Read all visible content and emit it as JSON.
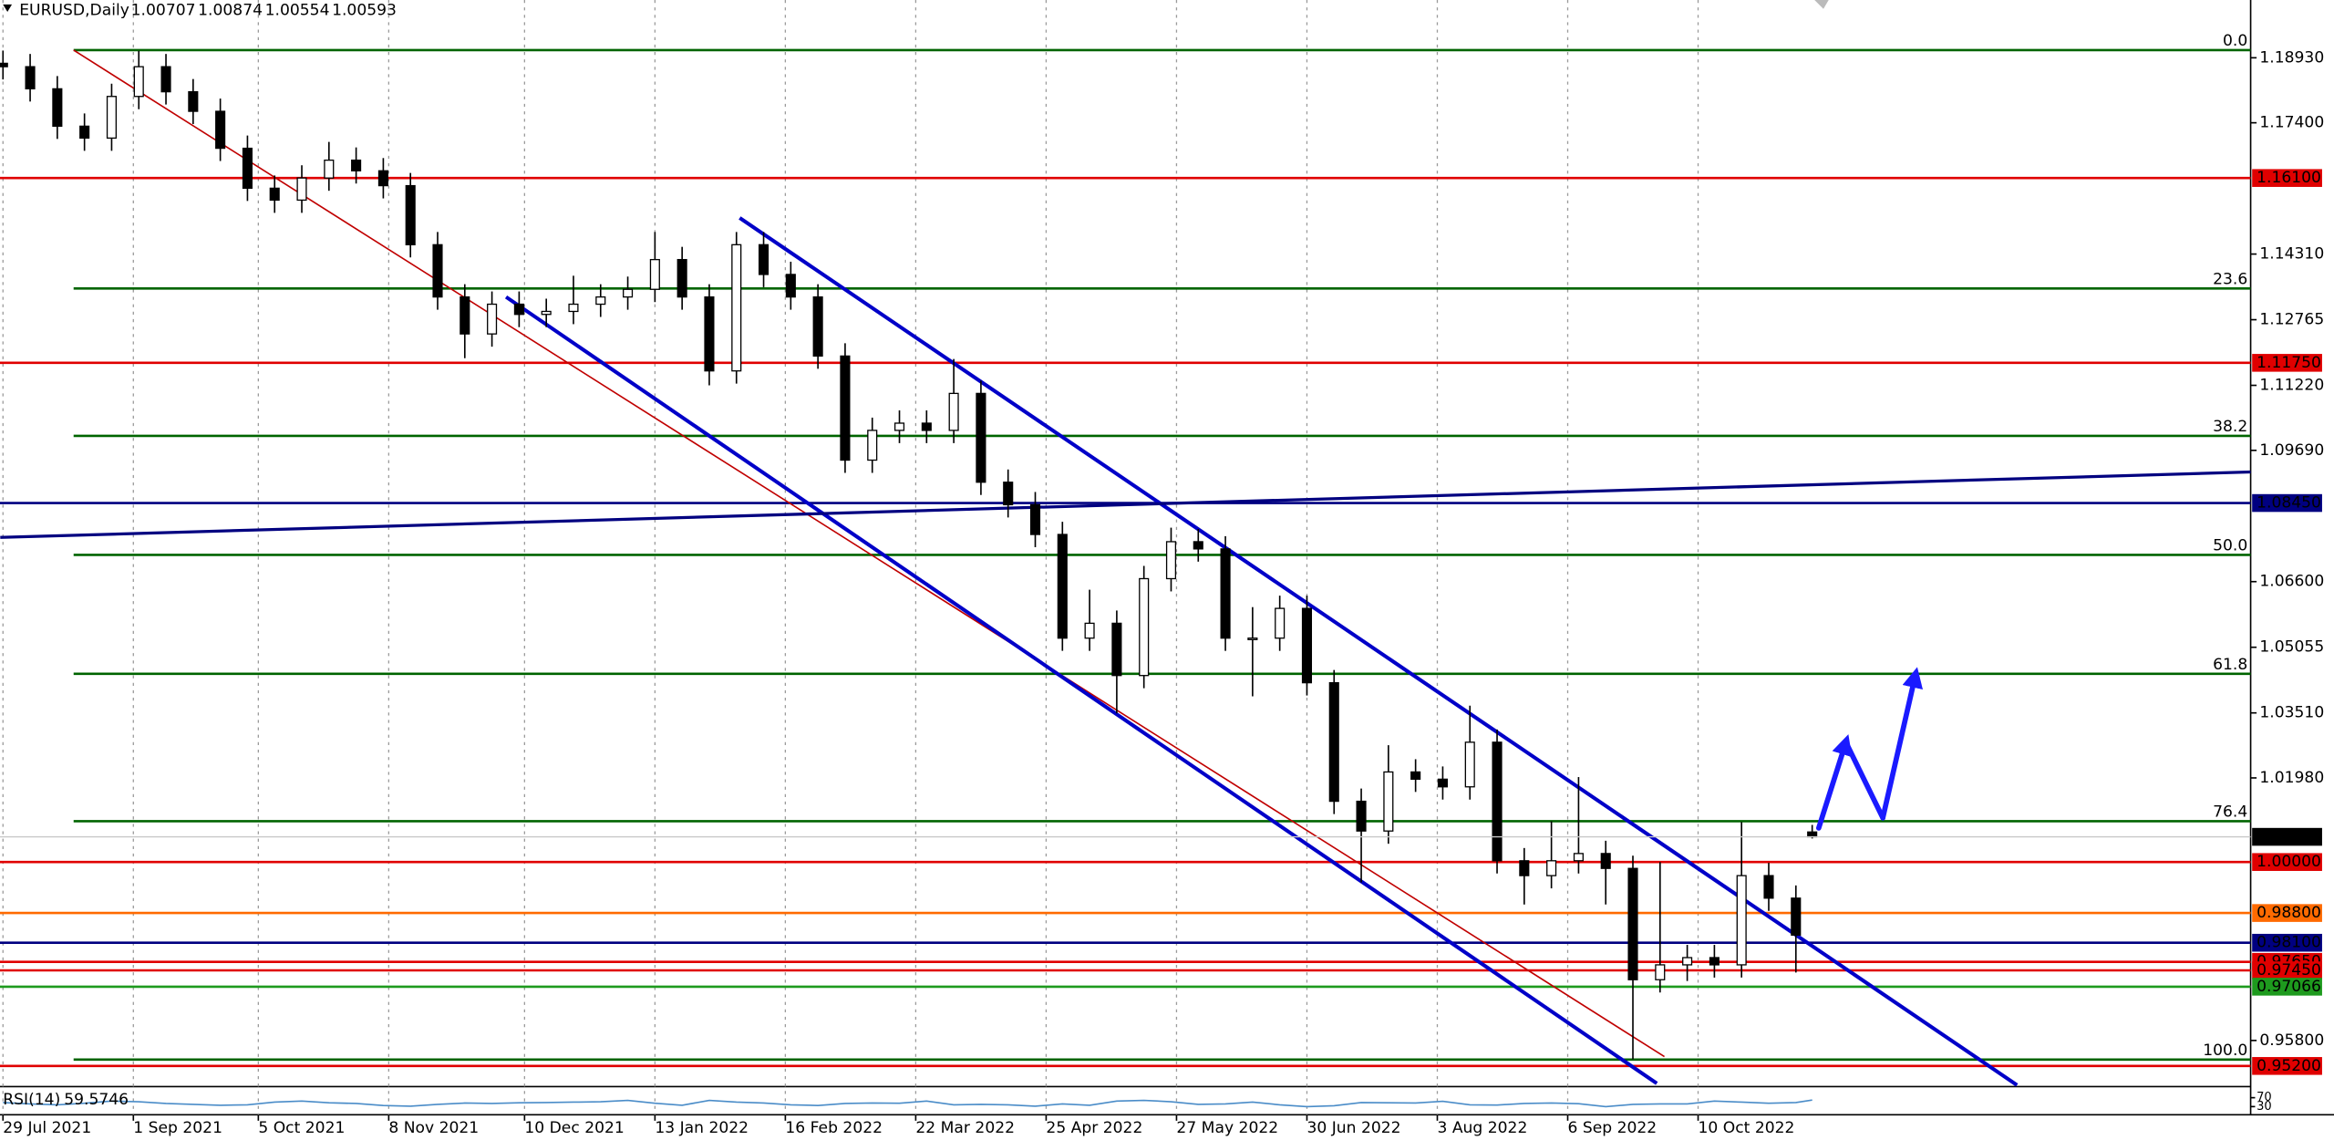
{
  "chart_data": {
    "type": "candlestick",
    "title": "EURUSD,Daily",
    "x": [
      0,
      5,
      10,
      15,
      20,
      25,
      30,
      35,
      40,
      45,
      50,
      55,
      60,
      65,
      70,
      75,
      80,
      85,
      90,
      95,
      100,
      105,
      110,
      115,
      120,
      125,
      130,
      135,
      140,
      145,
      150,
      155,
      160,
      165,
      170,
      175,
      180,
      185,
      190,
      195,
      200,
      205,
      210,
      215,
      220,
      225,
      230,
      235,
      240,
      245,
      250,
      255,
      260,
      265,
      270,
      275,
      280,
      285,
      290,
      295,
      300,
      305,
      310,
      315,
      320,
      325,
      330,
      333
    ],
    "open": [
      1.188,
      1.1872,
      1.182,
      1.1732,
      1.1704,
      1.1802,
      1.1872,
      1.1813,
      1.1767,
      1.168,
      1.1586,
      1.1558,
      1.161,
      1.1652,
      1.1627,
      1.1592,
      1.1453,
      1.133,
      1.1243,
      1.1313,
      1.1289,
      1.1296,
      1.1313,
      1.133,
      1.1348,
      1.1418,
      1.133,
      1.1156,
      1.1453,
      1.1383,
      1.133,
      1.1191,
      1.0946,
      1.1016,
      1.1033,
      1.1016,
      1.1103,
      1.0894,
      1.0841,
      1.0771,
      1.0527,
      1.0562,
      1.0439,
      1.0667,
      1.0754,
      1.0737,
      1.0527,
      1.0527,
      1.0597,
      1.0422,
      1.0143,
      1.0073,
      1.0212,
      1.0195,
      1.0177,
      1.0282,
      1.0003,
      0.9968,
      1.0003,
      1.002,
      0.9985,
      0.9723,
      0.9758,
      0.9775,
      0.9758,
      0.9968,
      0.9915,
      1.00707
    ],
    "high": [
      1.191,
      1.1902,
      1.185,
      1.1762,
      1.1832,
      1.1909,
      1.1902,
      1.1843,
      1.1797,
      1.171,
      1.1616,
      1.164,
      1.1695,
      1.1682,
      1.1657,
      1.1622,
      1.1483,
      1.136,
      1.1343,
      1.1343,
      1.1326,
      1.138,
      1.136,
      1.1378,
      1.1483,
      1.1448,
      1.136,
      1.1483,
      1.1483,
      1.1413,
      1.136,
      1.1221,
      1.1046,
      1.1063,
      1.1063,
      1.1184,
      1.1133,
      1.0924,
      1.0871,
      1.0801,
      1.0641,
      1.0592,
      1.0697,
      1.0787,
      1.0784,
      1.0767,
      1.06,
      1.0627,
      1.0627,
      1.0452,
      1.0173,
      1.0275,
      1.0242,
      1.0225,
      1.0368,
      1.0312,
      1.0033,
      1.0096,
      1.02,
      1.005,
      1.0015,
      1.0,
      0.9805,
      0.9805,
      1.0094,
      0.9998,
      0.9945,
      1.00874
    ],
    "low": [
      1.1842,
      1.179,
      1.1702,
      1.1674,
      1.1674,
      1.1772,
      1.1783,
      1.1737,
      1.165,
      1.1556,
      1.1528,
      1.1528,
      1.158,
      1.1597,
      1.1562,
      1.1423,
      1.13,
      1.1186,
      1.1213,
      1.1259,
      1.1259,
      1.1266,
      1.1283,
      1.13,
      1.1318,
      1.13,
      1.1122,
      1.1126,
      1.1353,
      1.13,
      1.1161,
      1.0916,
      1.0916,
      1.0986,
      1.0986,
      1.0986,
      1.0864,
      1.0811,
      1.0741,
      1.0497,
      1.0497,
      1.035,
      1.0409,
      1.0637,
      1.0707,
      1.0497,
      1.039,
      1.0497,
      1.0392,
      1.0113,
      0.9952,
      1.0043,
      1.0165,
      1.0147,
      1.0147,
      0.9973,
      0.99,
      0.9938,
      0.9973,
      0.99,
      0.9536,
      0.9693,
      0.972,
      0.9728,
      0.9728,
      0.9885,
      0.974,
      1.00554
    ],
    "close": [
      1.1872,
      1.182,
      1.1732,
      1.1704,
      1.1802,
      1.1872,
      1.1813,
      1.1767,
      1.168,
      1.1586,
      1.1558,
      1.161,
      1.1652,
      1.1627,
      1.1592,
      1.1453,
      1.133,
      1.1243,
      1.1313,
      1.1289,
      1.1296,
      1.1313,
      1.133,
      1.1348,
      1.1418,
      1.133,
      1.1156,
      1.1453,
      1.1383,
      1.133,
      1.1191,
      1.0946,
      1.1016,
      1.1033,
      1.1016,
      1.1103,
      1.0894,
      1.0841,
      1.0771,
      1.0527,
      1.0562,
      1.0439,
      1.0667,
      1.0754,
      1.0737,
      1.0527,
      1.0527,
      1.0597,
      1.0422,
      1.0143,
      1.0073,
      1.0212,
      1.0195,
      1.0177,
      1.0282,
      1.0003,
      0.9968,
      1.0003,
      1.002,
      0.9985,
      0.9723,
      0.9758,
      0.9775,
      0.9758,
      0.9968,
      0.9915,
      0.9828,
      1.00593
    ],
    "up_color": "#ffffff",
    "down_color": "#000000",
    "xlim": [
      -0.548,
      413.7
    ],
    "xticks": [
      {
        "value": 0,
        "label": "29 Jul 2021"
      },
      {
        "value": 24,
        "label": "1 Sep 2021"
      },
      {
        "value": 47,
        "label": "5 Oct 2021"
      },
      {
        "value": 71,
        "label": "8 Nov 2021"
      },
      {
        "value": 96,
        "label": "10 Dec 2021"
      },
      {
        "value": 120,
        "label": "13 Jan 2022"
      },
      {
        "value": 144,
        "label": "16 Feb 2022"
      },
      {
        "value": 168,
        "label": "22 Mar 2022"
      },
      {
        "value": 192,
        "label": "25 Apr 2022"
      },
      {
        "value": 216,
        "label": "27 May 2022"
      },
      {
        "value": 240,
        "label": "30 Jun 2022"
      },
      {
        "value": 264,
        "label": "3 Aug 2022"
      },
      {
        "value": 288,
        "label": "6 Sep 2022"
      },
      {
        "value": 312,
        "label": "10 Oct 2022"
      }
    ],
    "ylim": [
      0.9475,
      1.2029
    ],
    "yticks": [
      {
        "value": 1.1893,
        "label": "1.18930"
      },
      {
        "value": 1.174,
        "label": "1.17400"
      },
      {
        "value": 1.1431,
        "label": "1.14310"
      },
      {
        "value": 1.12765,
        "label": "1.12765"
      },
      {
        "value": 1.1122,
        "label": "1.11220"
      },
      {
        "value": 1.0969,
        "label": "1.09690"
      },
      {
        "value": 1.066,
        "label": "1.06600"
      },
      {
        "value": 1.05055,
        "label": "1.05055"
      },
      {
        "value": 1.0351,
        "label": "1.03510"
      },
      {
        "value": 1.0198,
        "label": "1.01980"
      },
      {
        "value": 0.958,
        "label": "0.95800"
      }
    ],
    "grid": true,
    "levels": [
      {
        "value": 1.161,
        "label": "1.16100",
        "color": "#e00000"
      },
      {
        "value": 1.1175,
        "label": "1.11750",
        "color": "#e00000"
      },
      {
        "value": 1.0845,
        "label": "1.08450",
        "color": "#000080"
      },
      {
        "value": 1.0,
        "label": "1.00000",
        "color": "#e00000"
      },
      {
        "value": 0.988,
        "label": "0.98800",
        "color": "#ff6a00"
      },
      {
        "value": 0.981,
        "label": "0.98100",
        "color": "#000080"
      },
      {
        "value": 0.9765,
        "label": "0.97650",
        "color": "#e00000"
      },
      {
        "value": 0.9745,
        "label": "0.97450",
        "color": "#e00000"
      },
      {
        "value": 0.97066,
        "label": "0.97066",
        "color": "#1e9a1e"
      },
      {
        "value": 0.952,
        "label": "0.95200",
        "color": "#e00000"
      }
    ],
    "fib": {
      "start": 13,
      "color": "#006400",
      "levels": [
        {
          "value": 1.1911,
          "label": "0.0"
        },
        {
          "value": 1.135,
          "label": "23.6"
        },
        {
          "value": 1.1003,
          "label": "38.2"
        },
        {
          "value": 1.0723,
          "label": "50.0"
        },
        {
          "value": 1.0443,
          "label": "61.8"
        },
        {
          "value": 1.0096,
          "label": "76.4"
        },
        {
          "value": 0.9535,
          "label": "100.0"
        }
      ]
    },
    "trendlines": [
      {
        "color": "#c00000",
        "width": 1,
        "points": [
          [
            13,
            1.1911
          ],
          [
            305.8,
            0.9542
          ]
        ]
      },
      {
        "color": "#0000c8",
        "width": 2.5,
        "points": [
          [
            92.6,
            1.133
          ],
          [
            304.4,
            0.9479
          ]
        ]
      },
      {
        "color": "#0000c8",
        "width": 2.5,
        "points": [
          [
            135.6,
            1.1516
          ],
          [
            370.7,
            0.9475
          ]
        ]
      },
      {
        "color": "#000080",
        "width": 2,
        "points": [
          [
            -0.5,
            1.0764
          ],
          [
            413.7,
            1.0918
          ]
        ]
      }
    ],
    "projection": {
      "color": "#1a1aff",
      "points": [
        [
          334.2,
          1.008
        ],
        [
          339.2,
          1.0282
        ],
        [
          346,
          1.0104
        ],
        [
          352,
          1.044
        ]
      ]
    },
    "indicator": {
      "name": "RSI(14)",
      "color": "#4a8cc8",
      "ylim": [
        0,
        100
      ],
      "yticks": [
        70,
        30
      ],
      "values": [
        48,
        42,
        38,
        45,
        55,
        52,
        44,
        40,
        36,
        38,
        50,
        55,
        47,
        44,
        35,
        32,
        40,
        46,
        44,
        47,
        48,
        50,
        52,
        58,
        45,
        36,
        58,
        50,
        46,
        38,
        35,
        44,
        46,
        45,
        55,
        38,
        40,
        38,
        32,
        42,
        36,
        55,
        58,
        52,
        40,
        42,
        50,
        38,
        30,
        34,
        48,
        47,
        46,
        54,
        38,
        37,
        44,
        46,
        43,
        30,
        40,
        42,
        42,
        55,
        50,
        45,
        48,
        59.5746
      ]
    }
  }
}
